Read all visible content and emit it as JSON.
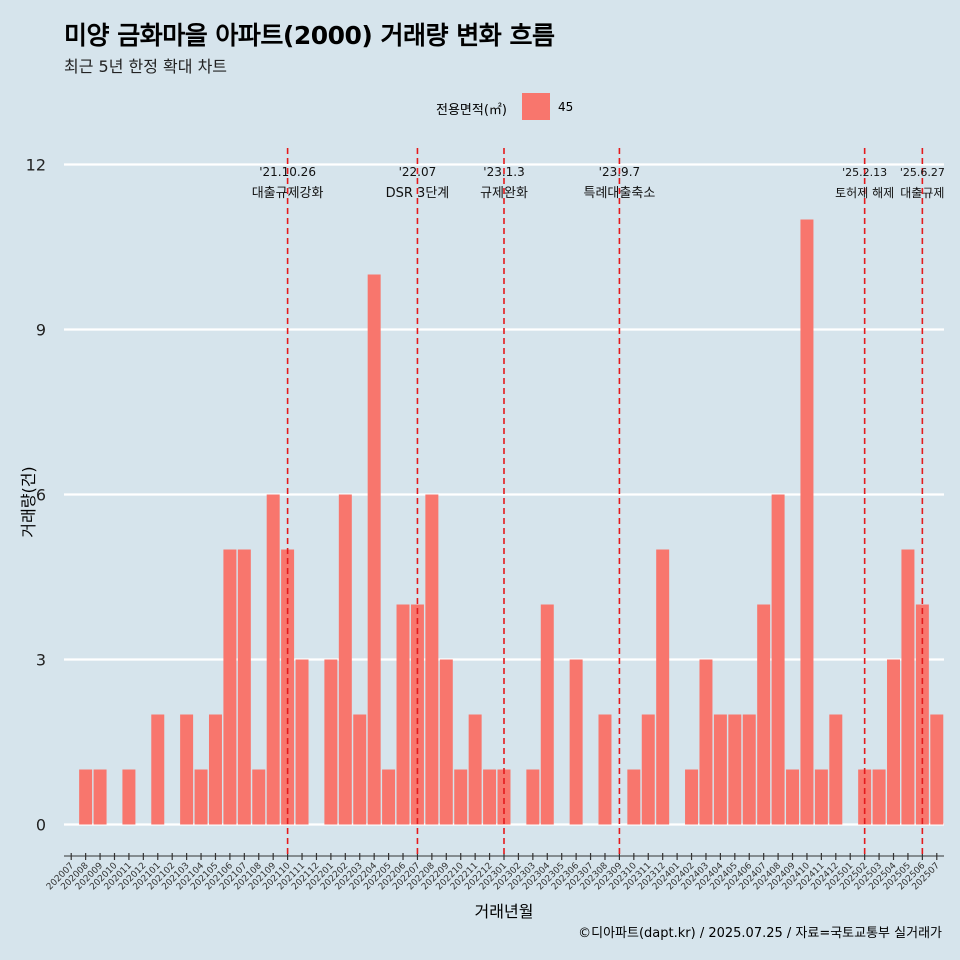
{
  "title": "미양 금화마을 아파트(2000) 거래량 변화 흐름",
  "subtitle": "최근 5년 한정 확대 차트",
  "caption": "©디아파트(dapt.kr) / 2025.07.25 / 자료=국토교통부 실거래가",
  "colors": {
    "background": "#d6e4ec",
    "bar": "#f8766d",
    "gridline": "#ffffff",
    "event_line": "#e41a1c"
  },
  "chart_data": {
    "type": "bar",
    "title": "미양 금화마을 아파트(2000) 거래량 변화 흐름",
    "subtitle": "최근 5년 한정 확대 차트",
    "xlabel": "거래년월",
    "ylabel": "거래량(건)",
    "ylim": [
      -0.5,
      12.3
    ],
    "yticks": [
      0,
      3,
      6,
      9,
      12
    ],
    "grid": "horizontal major",
    "legend": {
      "title": "전용면적(㎡)",
      "position": "top",
      "entries": [
        "45"
      ]
    },
    "categories": [
      "202007",
      "202008",
      "202009",
      "202010",
      "202011",
      "202012",
      "202101",
      "202102",
      "202103",
      "202104",
      "202105",
      "202106",
      "202107",
      "202108",
      "202109",
      "202110",
      "202111",
      "202112",
      "202201",
      "202202",
      "202203",
      "202204",
      "202205",
      "202206",
      "202207",
      "202208",
      "202209",
      "202210",
      "202211",
      "202212",
      "202301",
      "202302",
      "202303",
      "202304",
      "202305",
      "202306",
      "202307",
      "202308",
      "202309",
      "202310",
      "202311",
      "202312",
      "202401",
      "202402",
      "202403",
      "202404",
      "202405",
      "202406",
      "202407",
      "202408",
      "202409",
      "202410",
      "202411",
      "202412",
      "202501",
      "202502",
      "202503",
      "202504",
      "202505",
      "202506",
      "202507"
    ],
    "series": [
      {
        "name": "45",
        "values": [
          0,
          1,
          1,
          0,
          1,
          0,
          2,
          0,
          2,
          1,
          2,
          5,
          5,
          1,
          6,
          5,
          3,
          0,
          3,
          6,
          2,
          10,
          1,
          4,
          4,
          6,
          3,
          1,
          2,
          1,
          1,
          0,
          1,
          4,
          0,
          3,
          0,
          2,
          0,
          1,
          2,
          5,
          0,
          1,
          3,
          2,
          2,
          2,
          4,
          6,
          1,
          11,
          1,
          2,
          0,
          1,
          1,
          3,
          5,
          4,
          2
        ]
      }
    ],
    "annotations": [
      {
        "at": 15.0,
        "date": "'21.10.26",
        "text": "대출규제강화"
      },
      {
        "at": 24.0,
        "date": "'22.07",
        "text": "DSR 3단계"
      },
      {
        "at": 30.0,
        "date": "'23.1.3",
        "text": "규제완화"
      },
      {
        "at": 38.0,
        "date": "'23.9.7",
        "text": "특례대출축소"
      },
      {
        "at": 55.0,
        "date": "'25.2.13",
        "text": "토허제 해제"
      },
      {
        "at": 59.0,
        "date": "'25.6.27",
        "text": "대출규제"
      }
    ]
  }
}
